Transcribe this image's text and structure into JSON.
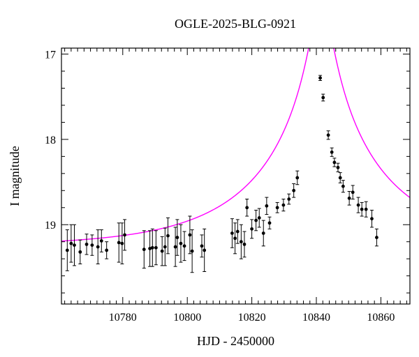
{
  "chart_data": {
    "type": "scatter",
    "title": "OGLE-2025-BLG-0921",
    "xlabel": "HJD - 2450000",
    "ylabel": "I magnitude",
    "xlim": [
      10761,
      10869
    ],
    "ylim": [
      19.93,
      16.93
    ],
    "y_inverted": true,
    "grid": false,
    "x_ticks": [
      10780,
      10800,
      10820,
      10840,
      10860
    ],
    "y_ticks": [
      17,
      18,
      19
    ],
    "x_tick_labels": [
      "10780",
      "10800",
      "10820",
      "10840",
      "10860"
    ],
    "y_tick_labels": [
      "17",
      "18",
      "19"
    ],
    "x_minor_step": 2,
    "y_minor_step": 0.2,
    "colors": {
      "points": "#000000",
      "model": "#ff00ff"
    },
    "series": [
      {
        "type": "scatter_errorbar",
        "x": [
          10762.8,
          10764.0,
          10765.0,
          10766.8,
          10768.8,
          10770.5,
          10772.3,
          10773.4,
          10775.0,
          10778.8,
          10779.8,
          10780.6,
          10786.6,
          10788.4,
          10789.2,
          10790.3,
          10792.2,
          10793.1,
          10794.0,
          10796.3,
          10796.9,
          10798.0,
          10799.1,
          10800.8,
          10801.5,
          10804.5,
          10805.3,
          10813.9,
          10814.8,
          10815.6,
          10816.7,
          10817.7,
          10818.5,
          10820.0,
          10821.3,
          10822.3,
          10823.6,
          10824.6,
          10825.5,
          10827.9,
          10829.8,
          10831.5,
          10833.0,
          10834.1,
          10841.2,
          10842.1,
          10843.7,
          10844.8,
          10845.6,
          10846.7,
          10847.4,
          10848.3,
          10850.2,
          10851.3,
          10853.0,
          10854.1,
          10855.4,
          10857.2,
          10858.7
        ],
        "y": [
          19.3,
          19.22,
          19.24,
          19.32,
          19.23,
          19.24,
          19.26,
          19.19,
          19.3,
          19.21,
          19.22,
          19.12,
          19.29,
          19.28,
          19.27,
          19.27,
          19.31,
          19.26,
          19.13,
          19.26,
          19.15,
          19.22,
          19.25,
          19.12,
          19.31,
          19.25,
          19.3,
          19.1,
          19.16,
          19.08,
          19.2,
          19.23,
          18.8,
          19.05,
          18.95,
          18.92,
          19.1,
          18.78,
          18.98,
          18.8,
          18.77,
          18.7,
          18.6,
          18.45,
          17.28,
          17.51,
          17.95,
          18.15,
          18.27,
          18.33,
          18.45,
          18.55,
          18.69,
          18.62,
          18.77,
          18.82,
          18.82,
          18.93,
          19.15
        ],
        "yerr": [
          0.24,
          0.22,
          0.24,
          0.14,
          0.12,
          0.12,
          0.2,
          0.13,
          0.1,
          0.23,
          0.24,
          0.18,
          0.22,
          0.21,
          0.22,
          0.2,
          0.17,
          0.22,
          0.21,
          0.23,
          0.21,
          0.22,
          0.17,
          0.22,
          0.25,
          0.13,
          0.25,
          0.17,
          0.18,
          0.14,
          0.2,
          0.15,
          0.1,
          0.11,
          0.12,
          0.11,
          0.15,
          0.1,
          0.07,
          0.06,
          0.07,
          0.06,
          0.08,
          0.08,
          0.03,
          0.04,
          0.05,
          0.05,
          0.05,
          0.05,
          0.06,
          0.07,
          0.08,
          0.08,
          0.09,
          0.08,
          0.09,
          0.1,
          0.1
        ]
      },
      {
        "type": "line",
        "model": "point-lens",
        "baseline": 19.255,
        "t0": 10841.5,
        "tE": 40,
        "u0": 0.067
      }
    ]
  }
}
